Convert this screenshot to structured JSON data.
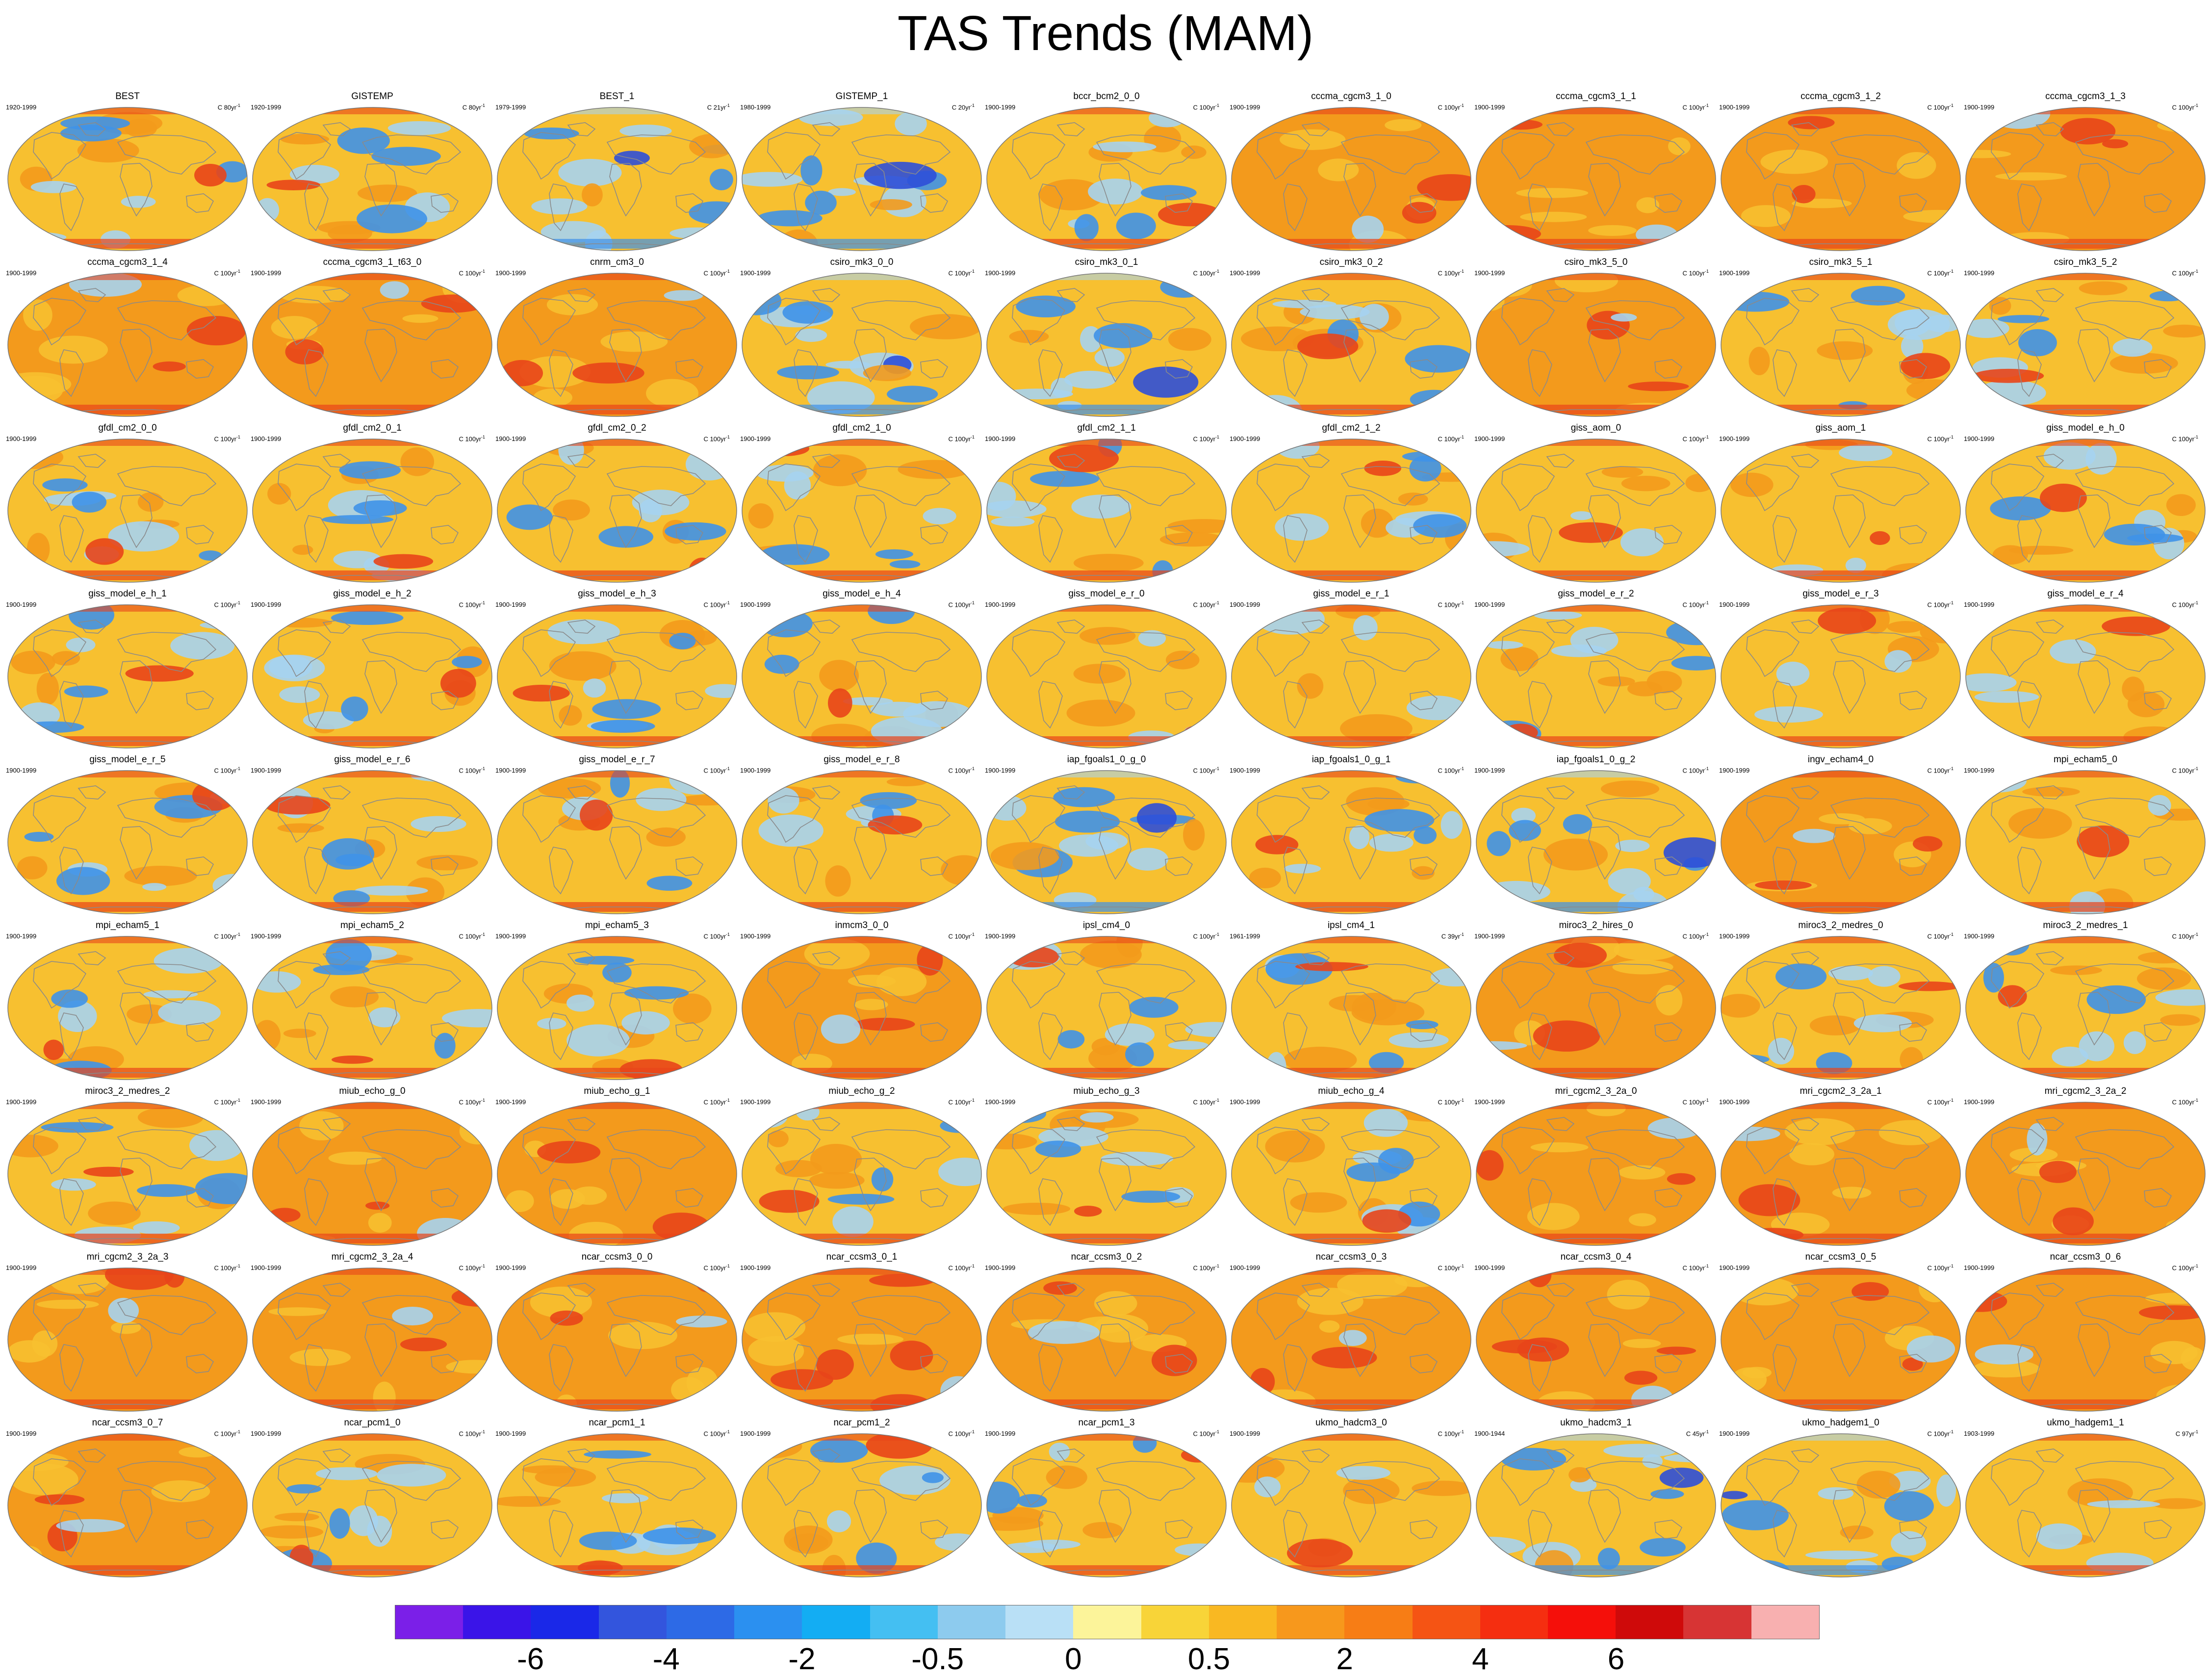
{
  "title": "TAS Trends (MAM)",
  "colors": {
    "ocean_base": "#f7c030",
    "warm": "#f39a1c",
    "hot": "#e8451a",
    "cool": "#a6d3f0",
    "cold": "#3f92e8",
    "very_cold": "#2e4fd8",
    "land_line": "#8a8a8a",
    "frame": "#777777"
  },
  "panels": [
    {
      "name": "BEST",
      "period": "1920-1999",
      "units": "C 80yr",
      "temp": "mixed"
    },
    {
      "name": "GISTEMP",
      "period": "1920-1999",
      "units": "C 80yr",
      "temp": "mixed"
    },
    {
      "name": "BEST_1",
      "period": "1979-1999",
      "units": "C 21yr",
      "temp": "cool"
    },
    {
      "name": "GISTEMP_1",
      "period": "1980-1999",
      "units": "C 20yr",
      "temp": "cool"
    },
    {
      "name": "bccr_bcm2_0_0",
      "period": "1900-1999",
      "units": "C 100yr",
      "temp": "mixed"
    },
    {
      "name": "cccma_cgcm3_1_0",
      "period": "1900-1999",
      "units": "C 100yr",
      "temp": "warm"
    },
    {
      "name": "cccma_cgcm3_1_1",
      "period": "1900-1999",
      "units": "C 100yr",
      "temp": "warm"
    },
    {
      "name": "cccma_cgcm3_1_2",
      "period": "1900-1999",
      "units": "C 100yr",
      "temp": "warm"
    },
    {
      "name": "cccma_cgcm3_1_3",
      "period": "1900-1999",
      "units": "C 100yr",
      "temp": "warm"
    },
    {
      "name": "cccma_cgcm3_1_4",
      "period": "1900-1999",
      "units": "C 100yr",
      "temp": "warm"
    },
    {
      "name": "cccma_cgcm3_1_t63_0",
      "period": "1900-1999",
      "units": "C 100yr",
      "temp": "warm"
    },
    {
      "name": "cnrm_cm3_0",
      "period": "1900-1999",
      "units": "C 100yr",
      "temp": "warm"
    },
    {
      "name": "csiro_mk3_0_0",
      "period": "1900-1999",
      "units": "C 100yr",
      "temp": "cool"
    },
    {
      "name": "csiro_mk3_0_1",
      "period": "1900-1999",
      "units": "C 100yr",
      "temp": "cool"
    },
    {
      "name": "csiro_mk3_0_2",
      "period": "1900-1999",
      "units": "C 100yr",
      "temp": "mixed"
    },
    {
      "name": "csiro_mk3_5_0",
      "period": "1900-1999",
      "units": "C 100yr",
      "temp": "warm"
    },
    {
      "name": "csiro_mk3_5_1",
      "period": "1900-1999",
      "units": "C 100yr",
      "temp": "mixed"
    },
    {
      "name": "csiro_mk3_5_2",
      "period": "1900-1999",
      "units": "C 100yr",
      "temp": "mixed"
    },
    {
      "name": "gfdl_cm2_0_0",
      "period": "1900-1999",
      "units": "C 100yr",
      "temp": "mixed"
    },
    {
      "name": "gfdl_cm2_0_1",
      "period": "1900-1999",
      "units": "C 100yr",
      "temp": "mixed"
    },
    {
      "name": "gfdl_cm2_0_2",
      "period": "1900-1999",
      "units": "C 100yr",
      "temp": "mixed"
    },
    {
      "name": "gfdl_cm2_1_0",
      "period": "1900-1999",
      "units": "C 100yr",
      "temp": "mixed"
    },
    {
      "name": "gfdl_cm2_1_1",
      "period": "1900-1999",
      "units": "C 100yr",
      "temp": "mixed"
    },
    {
      "name": "gfdl_cm2_1_2",
      "period": "1900-1999",
      "units": "C 100yr",
      "temp": "mixed"
    },
    {
      "name": "giss_aom_0",
      "period": "1900-1999",
      "units": "C 100yr",
      "temp": "mild"
    },
    {
      "name": "giss_aom_1",
      "period": "1900-1999",
      "units": "C 100yr",
      "temp": "mild"
    },
    {
      "name": "giss_model_e_h_0",
      "period": "1900-1999",
      "units": "C 100yr",
      "temp": "mixed"
    },
    {
      "name": "giss_model_e_h_1",
      "period": "1900-1999",
      "units": "C 100yr",
      "temp": "mixed"
    },
    {
      "name": "giss_model_e_h_2",
      "period": "1900-1999",
      "units": "C 100yr",
      "temp": "mixed"
    },
    {
      "name": "giss_model_e_h_3",
      "period": "1900-1999",
      "units": "C 100yr",
      "temp": "mixed"
    },
    {
      "name": "giss_model_e_h_4",
      "period": "1900-1999",
      "units": "C 100yr",
      "temp": "mixed"
    },
    {
      "name": "giss_model_e_r_0",
      "period": "1900-1999",
      "units": "C 100yr",
      "temp": "mild"
    },
    {
      "name": "giss_model_e_r_1",
      "period": "1900-1999",
      "units": "C 100yr",
      "temp": "mild"
    },
    {
      "name": "giss_model_e_r_2",
      "period": "1900-1999",
      "units": "C 100yr",
      "temp": "mixed"
    },
    {
      "name": "giss_model_e_r_3",
      "period": "1900-1999",
      "units": "C 100yr",
      "temp": "mild"
    },
    {
      "name": "giss_model_e_r_4",
      "period": "1900-1999",
      "units": "C 100yr",
      "temp": "mild"
    },
    {
      "name": "giss_model_e_r_5",
      "period": "1900-1999",
      "units": "C 100yr",
      "temp": "mixed"
    },
    {
      "name": "giss_model_e_r_6",
      "period": "1900-1999",
      "units": "C 100yr",
      "temp": "mixed"
    },
    {
      "name": "giss_model_e_r_7",
      "period": "1900-1999",
      "units": "C 100yr",
      "temp": "mixed"
    },
    {
      "name": "giss_model_e_r_8",
      "period": "1900-1999",
      "units": "C 100yr",
      "temp": "mixed"
    },
    {
      "name": "iap_fgoals1_0_g_0",
      "period": "1900-1999",
      "units": "C 100yr",
      "temp": "cool"
    },
    {
      "name": "iap_fgoals1_0_g_1",
      "period": "1900-1999",
      "units": "C 100yr",
      "temp": "mixed"
    },
    {
      "name": "iap_fgoals1_0_g_2",
      "period": "1900-1999",
      "units": "C 100yr",
      "temp": "cool"
    },
    {
      "name": "ingv_echam4_0",
      "period": "1900-1999",
      "units": "C 100yr",
      "temp": "warm"
    },
    {
      "name": "mpi_echam5_0",
      "period": "1900-1999",
      "units": "C 100yr",
      "temp": "mild"
    },
    {
      "name": "mpi_echam5_1",
      "period": "1900-1999",
      "units": "C 100yr",
      "temp": "mixed"
    },
    {
      "name": "mpi_echam5_2",
      "period": "1900-1999",
      "units": "C 100yr",
      "temp": "mixed"
    },
    {
      "name": "mpi_echam5_3",
      "period": "1900-1999",
      "units": "C 100yr",
      "temp": "mixed"
    },
    {
      "name": "inmcm3_0_0",
      "period": "1900-1999",
      "units": "C 100yr",
      "temp": "warm"
    },
    {
      "name": "ipsl_cm4_0",
      "period": "1900-1999",
      "units": "C 100yr",
      "temp": "mixed"
    },
    {
      "name": "ipsl_cm4_1",
      "period": "1961-1999",
      "units": "C 39yr",
      "temp": "mixed"
    },
    {
      "name": "miroc3_2_hires_0",
      "period": "1900-1999",
      "units": "C 100yr",
      "temp": "warm"
    },
    {
      "name": "miroc3_2_medres_0",
      "period": "1900-1999",
      "units": "C 100yr",
      "temp": "mixed"
    },
    {
      "name": "miroc3_2_medres_1",
      "period": "1900-1999",
      "units": "C 100yr",
      "temp": "mixed"
    },
    {
      "name": "miroc3_2_medres_2",
      "period": "1900-1999",
      "units": "C 100yr",
      "temp": "mixed"
    },
    {
      "name": "miub_echo_g_0",
      "period": "1900-1999",
      "units": "C 100yr",
      "temp": "warm"
    },
    {
      "name": "miub_echo_g_1",
      "period": "1900-1999",
      "units": "C 100yr",
      "temp": "warm"
    },
    {
      "name": "miub_echo_g_2",
      "period": "1900-1999",
      "units": "C 100yr",
      "temp": "mixed"
    },
    {
      "name": "miub_echo_g_3",
      "period": "1900-1999",
      "units": "C 100yr",
      "temp": "mixed"
    },
    {
      "name": "miub_echo_g_4",
      "period": "1900-1999",
      "units": "C 100yr",
      "temp": "mixed"
    },
    {
      "name": "mri_cgcm2_3_2a_0",
      "period": "1900-1999",
      "units": "C 100yr",
      "temp": "warm"
    },
    {
      "name": "mri_cgcm2_3_2a_1",
      "period": "1900-1999",
      "units": "C 100yr",
      "temp": "warm"
    },
    {
      "name": "mri_cgcm2_3_2a_2",
      "period": "1900-1999",
      "units": "C 100yr",
      "temp": "warm"
    },
    {
      "name": "mri_cgcm2_3_2a_3",
      "period": "1900-1999",
      "units": "C 100yr",
      "temp": "warm"
    },
    {
      "name": "mri_cgcm2_3_2a_4",
      "period": "1900-1999",
      "units": "C 100yr",
      "temp": "warm"
    },
    {
      "name": "ncar_ccsm3_0_0",
      "period": "1900-1999",
      "units": "C 100yr",
      "temp": "warm"
    },
    {
      "name": "ncar_ccsm3_0_1",
      "period": "1900-1999",
      "units": "C 100yr",
      "temp": "hot"
    },
    {
      "name": "ncar_ccsm3_0_2",
      "period": "1900-1999",
      "units": "C 100yr",
      "temp": "warm"
    },
    {
      "name": "ncar_ccsm3_0_3",
      "period": "1900-1999",
      "units": "C 100yr",
      "temp": "warm"
    },
    {
      "name": "ncar_ccsm3_0_4",
      "period": "1900-1999",
      "units": "C 100yr",
      "temp": "hot"
    },
    {
      "name": "ncar_ccsm3_0_5",
      "period": "1900-1999",
      "units": "C 100yr",
      "temp": "warm"
    },
    {
      "name": "ncar_ccsm3_0_6",
      "period": "1900-1999",
      "units": "C 100yr",
      "temp": "warm"
    },
    {
      "name": "ncar_ccsm3_0_7",
      "period": "1900-1999",
      "units": "C 100yr",
      "temp": "warm"
    },
    {
      "name": "ncar_pcm1_0",
      "period": "1900-1999",
      "units": "C 100yr",
      "temp": "mixed"
    },
    {
      "name": "ncar_pcm1_1",
      "period": "1900-1999",
      "units": "C 100yr",
      "temp": "mixed"
    },
    {
      "name": "ncar_pcm1_2",
      "period": "1900-1999",
      "units": "C 100yr",
      "temp": "mixed"
    },
    {
      "name": "ncar_pcm1_3",
      "period": "1900-1999",
      "units": "C 100yr",
      "temp": "mixed"
    },
    {
      "name": "ukmo_hadcm3_0",
      "period": "1900-1999",
      "units": "C 100yr",
      "temp": "mild"
    },
    {
      "name": "ukmo_hadcm3_1",
      "period": "1900-1944",
      "units": "C 45yr",
      "temp": "cool"
    },
    {
      "name": "ukmo_hadgem1_0",
      "period": "1900-1999",
      "units": "C 100yr",
      "temp": "cool"
    },
    {
      "name": "ukmo_hadgem1_1",
      "period": "1903-1999",
      "units": "C 97yr",
      "temp": "mild"
    }
  ],
  "colorbar": {
    "colors": [
      "#7b1fe8",
      "#3a14e8",
      "#1a28e8",
      "#3355dd",
      "#2d6ae6",
      "#2b90f0",
      "#13adf3",
      "#44bff2",
      "#8dcbee",
      "#b9e0f6",
      "#fcf49a",
      "#f8d438",
      "#f9b822",
      "#f7981c",
      "#f77d15",
      "#f55414",
      "#f52e10",
      "#f50f0a",
      "#cf0a0a",
      "#d73434",
      "#f8b0b0"
    ],
    "labels": [
      "-6",
      "-4",
      "-2",
      "-0.5",
      "0",
      "0.5",
      "2",
      "4",
      "6"
    ],
    "label_boundaries": [
      2,
      4,
      6,
      8,
      10,
      12,
      14,
      16,
      18
    ]
  },
  "units_exponent": "-1"
}
